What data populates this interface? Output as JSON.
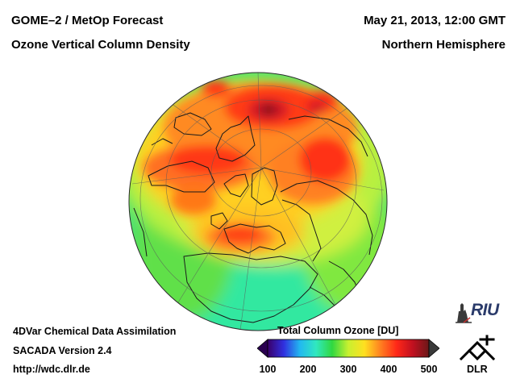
{
  "header": {
    "product": "GOME–2 / MetOp Forecast",
    "quantity": "Ozone Vertical Column Density",
    "datetime": "May 21, 2013, 12:00 GMT",
    "region": "Northern Hemisphere"
  },
  "footer": {
    "method": "4DVar Chemical Data Assimilation",
    "model": "SACADA Version 2.4",
    "url": "http://wdc.dlr.de"
  },
  "map": {
    "projection": "orthographic",
    "hemisphere": "Northern Hemisphere",
    "field": "Total Column Ozone",
    "unit": "DU"
  },
  "colorbar": {
    "title": "Total Column Ozone [DU]",
    "min": 100,
    "max": 500,
    "tick_labels": [
      "100",
      "200",
      "300",
      "400",
      "500"
    ],
    "tick_values": [
      100,
      200,
      300,
      400,
      500
    ],
    "colors": [
      "#3a006a",
      "#3030e0",
      "#22b8f0",
      "#30e8c0",
      "#30d840",
      "#c8f030",
      "#ffe020",
      "#ff8020",
      "#ff2818",
      "#c01020",
      "#6a1818"
    ]
  },
  "logos": {
    "riu": "RIU",
    "dlr": "DLR"
  }
}
